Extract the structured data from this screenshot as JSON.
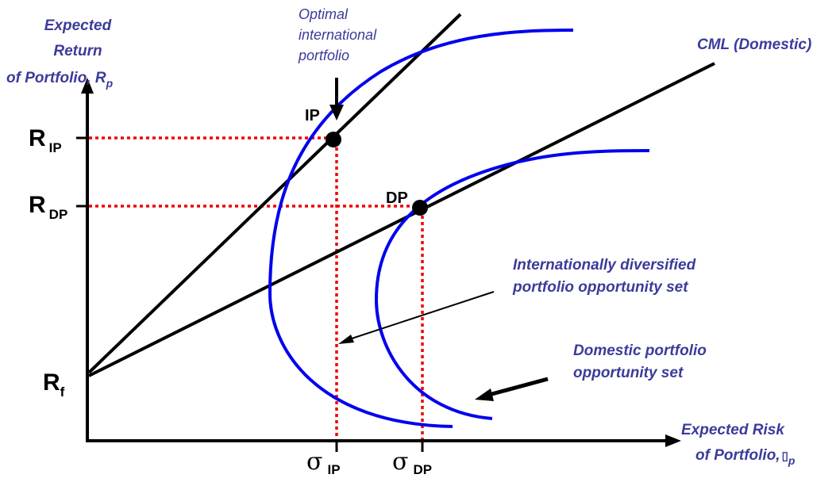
{
  "labels": {
    "y_axis": [
      "Expected",
      "Return",
      "of Portfolio, R",
      "p"
    ],
    "x_axis": [
      "Expected Risk",
      "of Portfolio,",
      "p"
    ],
    "optimal": [
      "Optimal",
      "international",
      "portfolio"
    ],
    "cml": "CML (Domestic)",
    "intl_set": [
      "Internationally diversified",
      "portfolio opportunity set"
    ],
    "dom_set": [
      "Domestic portfolio",
      "opportunity set"
    ],
    "ip": "IP",
    "dp": "DP",
    "r_ip": [
      "R",
      "IP"
    ],
    "r_dp": [
      "R",
      "DP"
    ],
    "r_f": [
      "R",
      "f"
    ],
    "sigma_ip": [
      "σ",
      "IP"
    ],
    "sigma_dp": [
      "σ",
      "DP"
    ]
  },
  "colors": {
    "frontier": "#0000ee",
    "guide": "#ee0000",
    "text_blue": "#3b3b9a",
    "axes": "#000000"
  }
}
